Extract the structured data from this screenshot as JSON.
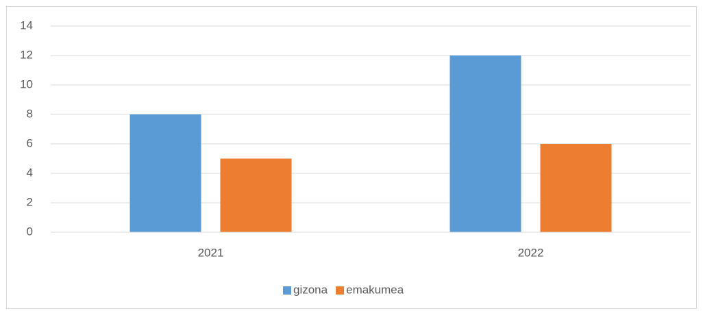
{
  "chart_data": {
    "type": "bar",
    "categories": [
      "2021",
      "2022"
    ],
    "series": [
      {
        "name": "gizona",
        "color": "#5b9bd5",
        "values": [
          8,
          12
        ]
      },
      {
        "name": "emakumea",
        "color": "#ed7d31",
        "values": [
          5,
          6
        ]
      }
    ],
    "ylim": [
      0,
      14
    ],
    "yticks": [
      0,
      2,
      4,
      6,
      8,
      10,
      12,
      14
    ],
    "grid": true,
    "legend": "bottom"
  }
}
